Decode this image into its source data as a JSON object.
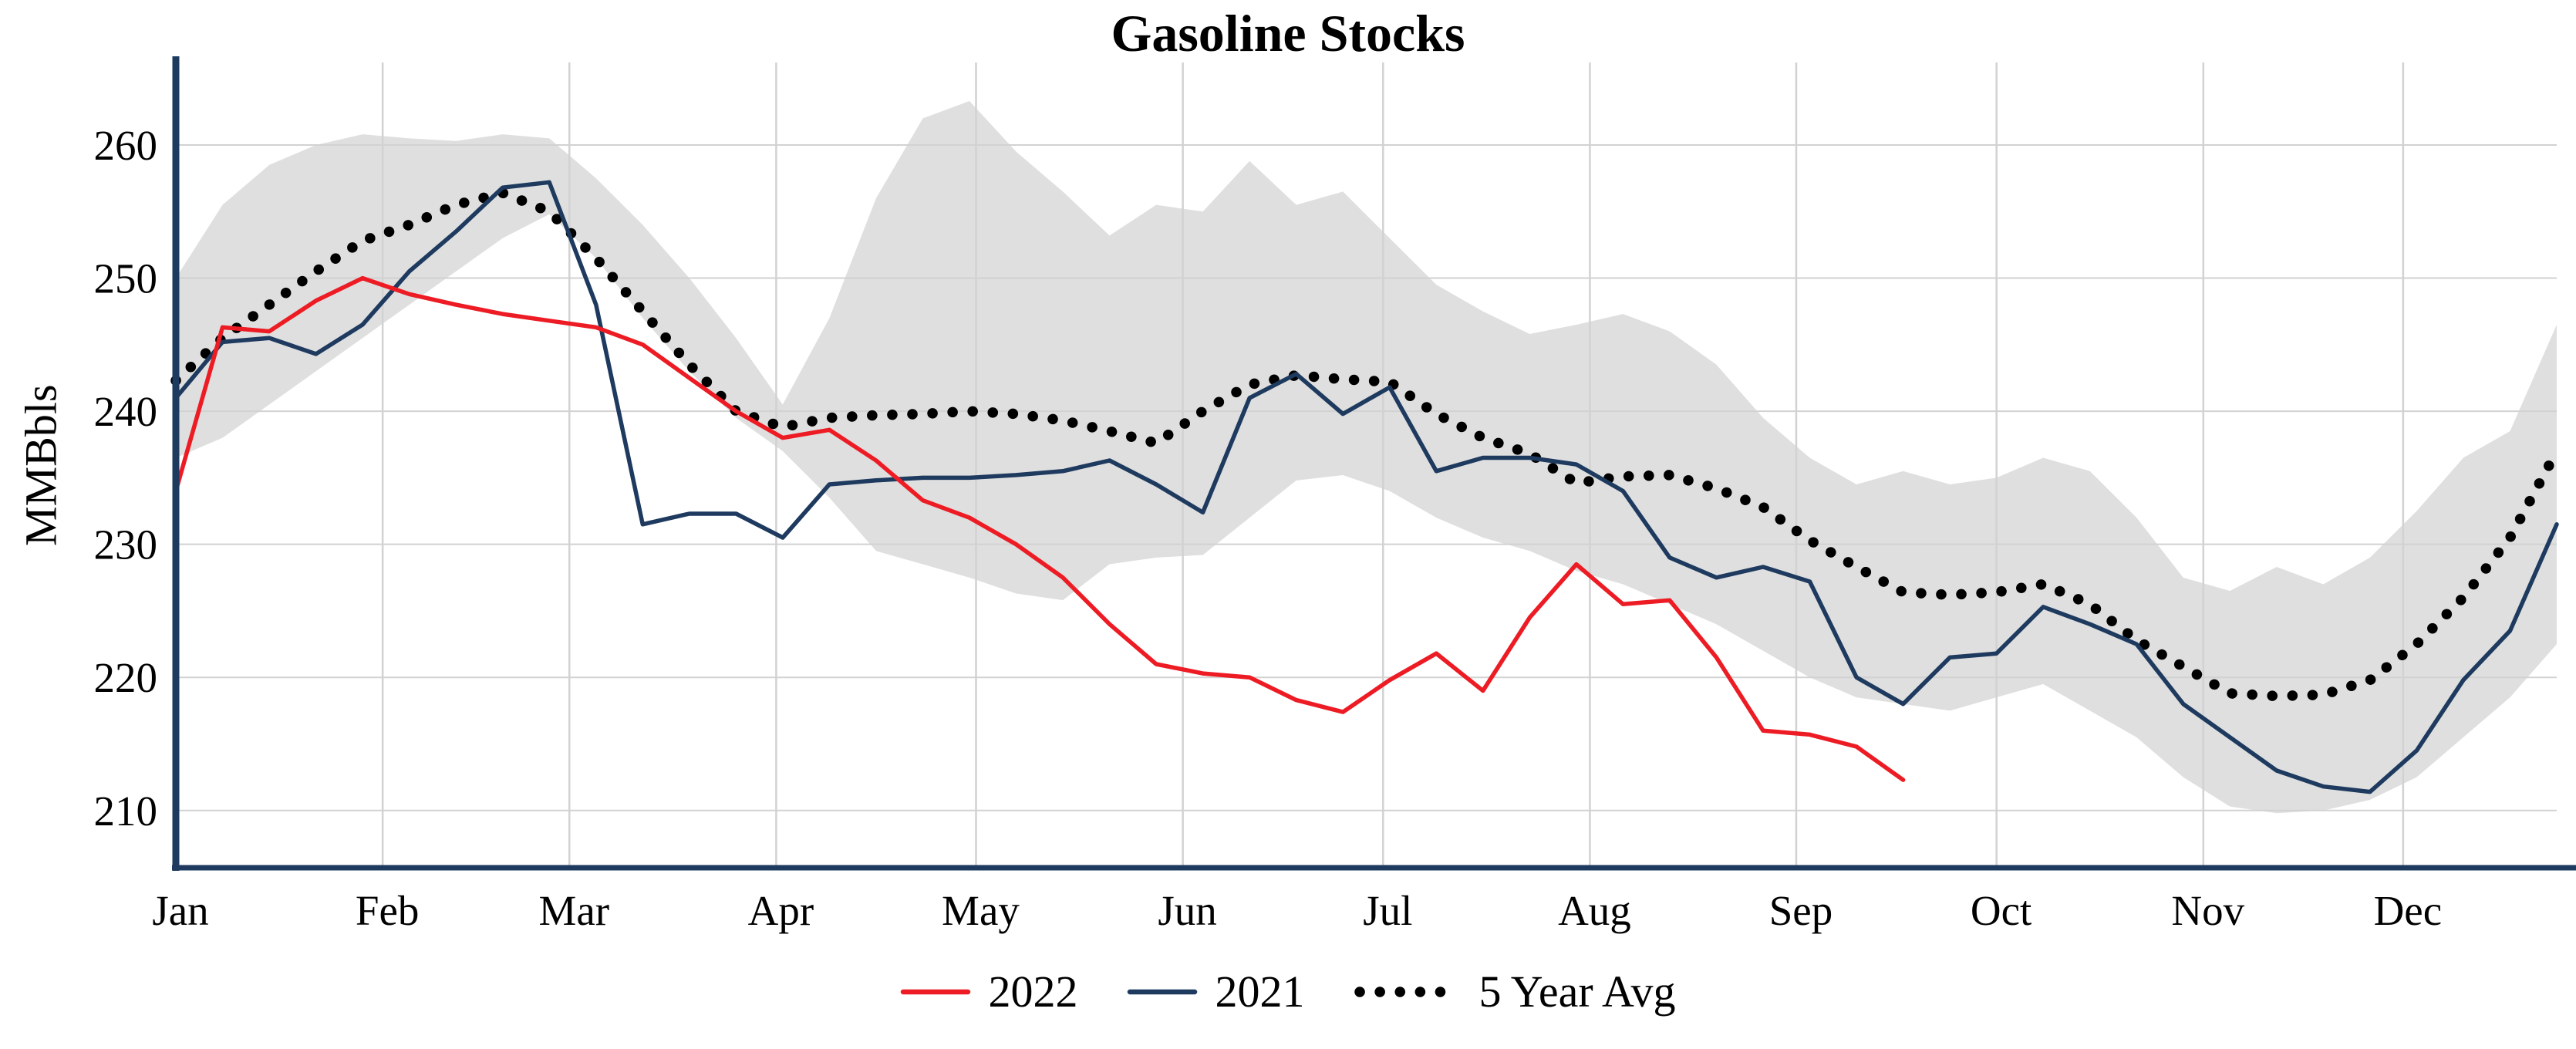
{
  "chart_data": {
    "type": "line",
    "title": "Gasoline Stocks",
    "ylabel": "MMBbls",
    "xlabel": "",
    "yticks": [
      210,
      220,
      230,
      240,
      250,
      260
    ],
    "ylim": [
      205.7,
      266.2
    ],
    "xlim_weeks": [
      0,
      51
    ],
    "grid": true,
    "legend_position": "bottom-center",
    "x_unit": "week-of-year",
    "months": [
      "Jan",
      "Feb",
      "Mar",
      "Apr",
      "May",
      "Jun",
      "Jul",
      "Aug",
      "Sep",
      "Oct",
      "Nov",
      "Dec"
    ],
    "month_positions_weeks": [
      0,
      4.43,
      8.43,
      12.86,
      17.14,
      21.57,
      25.86,
      30.29,
      34.71,
      39.0,
      43.43,
      47.71
    ],
    "colors": {
      "red_2022": "#ed1c24",
      "navy_2021": "#1e3a5f",
      "avg_dotted": "#000000",
      "band_fill": "#dcdcdc",
      "grid": "#d2d2d2",
      "axis": "#1e3a5f"
    },
    "band": {
      "upper": [
        250,
        255.5,
        258.5,
        260,
        260.8,
        260.5,
        260.3,
        260.8,
        260.5,
        257.5,
        254,
        250,
        245.5,
        240.5,
        247,
        256,
        262,
        263.3,
        259.5,
        256.5,
        253.2,
        255.5,
        255,
        258.8,
        255.5,
        256.5,
        253,
        249.5,
        247.5,
        245.8,
        246.5,
        247.3,
        246,
        243.5,
        239.5,
        236.5,
        234.5,
        235.5,
        234.5,
        235,
        236.5,
        235.5,
        232,
        227.5,
        226.5,
        228.3,
        227,
        229,
        232.5,
        236.5,
        238.5,
        246.5
      ],
      "lower": [
        236.5,
        238,
        240.5,
        243,
        245.5,
        248,
        250.5,
        253,
        254.8,
        251.5,
        247,
        243,
        239.5,
        237,
        233.5,
        229.5,
        228.5,
        227.5,
        226.3,
        225.8,
        228.5,
        229,
        229.2,
        232,
        234.8,
        235.2,
        234,
        232,
        230.5,
        229.5,
        228,
        227,
        225.5,
        224,
        222,
        220,
        218.5,
        218,
        217.5,
        218.5,
        219.5,
        217.5,
        215.5,
        212.5,
        210.3,
        209.8,
        210,
        210.8,
        212.5,
        215.5,
        218.5,
        222.5
      ]
    },
    "series": [
      {
        "name": "2022",
        "color_key": "red_2022",
        "style": "solid",
        "values": [
          234,
          246.3,
          246,
          248.3,
          250,
          248.8,
          248,
          247.3,
          246.8,
          246.3,
          245,
          242.5,
          240,
          238,
          238.6,
          236.3,
          233.3,
          232,
          230,
          227.5,
          224,
          221,
          220.3,
          220,
          218.3,
          217.4,
          219.8,
          221.8,
          219,
          224.5,
          228.5,
          225.5,
          225.8,
          221.5,
          216,
          215.7,
          214.8,
          212.3
        ]
      },
      {
        "name": "2021",
        "color_key": "navy_2021",
        "style": "solid",
        "values": [
          241,
          245.2,
          245.5,
          244.3,
          246.5,
          250.5,
          253.5,
          256.8,
          257.2,
          248,
          231.5,
          232.3,
          232.3,
          230.5,
          234.5,
          234.8,
          235,
          235,
          235.2,
          235.5,
          236.3,
          234.5,
          232.4,
          241,
          242.8,
          239.8,
          241.8,
          235.5,
          236.5,
          236.5,
          236,
          234,
          229,
          227.5,
          228.3,
          227.2,
          220,
          218,
          221.5,
          221.8,
          225.3,
          224,
          222.5,
          218,
          215.5,
          213,
          211.8,
          211.4,
          214.5,
          219.8,
          223.5,
          231.5
        ]
      },
      {
        "name": "5 Year Avg",
        "color_key": "avg_dotted",
        "style": "dotted",
        "values": [
          242.3,
          245.5,
          248,
          250.5,
          252.8,
          254,
          255.5,
          256.4,
          255,
          251.5,
          247.5,
          243.5,
          240,
          238.8,
          239.5,
          239.7,
          239.8,
          240,
          239.8,
          239.3,
          238.5,
          237.6,
          240,
          242,
          242.7,
          242.4,
          242.2,
          239.8,
          238,
          236.8,
          234.6,
          235.1,
          235.2,
          234.2,
          232.8,
          230.3,
          228.3,
          226.4,
          226.2,
          226.4,
          227,
          225.5,
          222.8,
          220.8,
          218.8,
          218.6,
          218.7,
          219.8,
          222.5,
          226,
          230.5,
          237
        ]
      }
    ]
  }
}
